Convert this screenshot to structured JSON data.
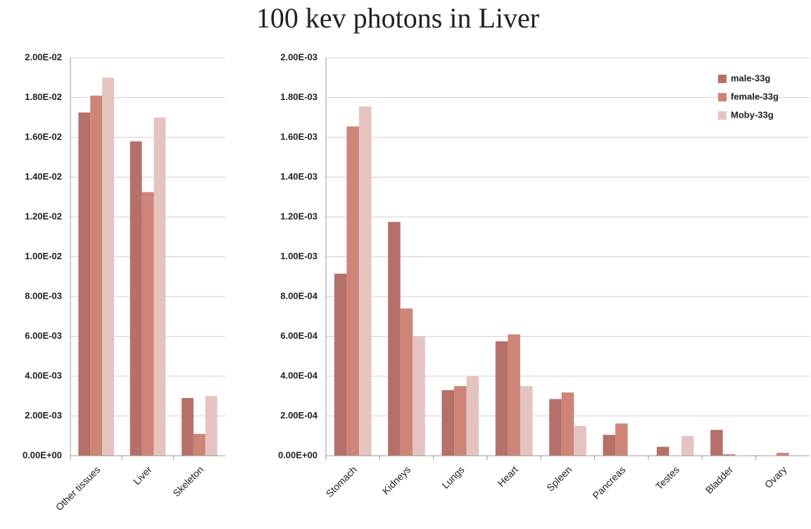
{
  "title": "100 kev photons in Liver",
  "chart_data": [
    {
      "type": "bar",
      "categories": [
        "Other tissues",
        "Liver",
        "Skeleton"
      ],
      "series": [
        {
          "color": "#b5706a",
          "values": [
            0.01725,
            0.0158,
            0.0029
          ]
        },
        {
          "color": "#cf8478",
          "values": [
            0.0181,
            0.01325,
            0.0011
          ]
        },
        {
          "color": "#e5c4c0",
          "values": [
            0.019,
            0.017,
            0.003
          ]
        }
      ],
      "ylim": [
        0,
        0.02
      ],
      "yticks": [
        {
          "value": 0,
          "label": "0.00E+00"
        },
        {
          "value": 0.002,
          "label": "2.00E-03"
        },
        {
          "value": 0.004,
          "label": "4.00E-03"
        },
        {
          "value": 0.006,
          "label": "6.00E-03"
        },
        {
          "value": 0.008,
          "label": "8.00E-03"
        },
        {
          "value": 0.01,
          "label": "1.00E-02"
        },
        {
          "value": 0.012,
          "label": "1.20E-02"
        },
        {
          "value": 0.014,
          "label": "1.40E-02"
        },
        {
          "value": 0.016,
          "label": "1.60E-02"
        },
        {
          "value": 0.018,
          "label": "1.80E-02"
        },
        {
          "value": 0.02,
          "label": "2.00E-02"
        }
      ],
      "grid": true
    },
    {
      "type": "bar",
      "categories": [
        "Stomach",
        "Kidneys",
        "Lungs",
        "Heart",
        "Spleen",
        "Pancreas",
        "Testes",
        "Bladder",
        "Ovary"
      ],
      "series": [
        {
          "name": "male-33g",
          "color": "#b5706a",
          "values": [
            0.000915,
            0.001175,
            0.00033,
            0.000575,
            0.000285,
            0.000105,
            4.5e-05,
            0.00013,
            0
          ]
        },
        {
          "name": "female-33g",
          "color": "#cf8478",
          "values": [
            0.001655,
            0.00074,
            0.00035,
            0.00061,
            0.000318,
            0.000162,
            0,
            8e-06,
            1.5e-05
          ]
        },
        {
          "name": "Moby-33g",
          "color": "#e5c4c0",
          "values": [
            0.001755,
            0.0006,
            0.0004,
            0.00035,
            0.00015,
            0,
            0.0001,
            0,
            0
          ]
        }
      ],
      "ylim": [
        0,
        0.002
      ],
      "yticks": [
        {
          "value": 0,
          "label": "0.00E+00"
        },
        {
          "value": 0.0002,
          "label": "2.00E-04"
        },
        {
          "value": 0.0004,
          "label": "4.00E-04"
        },
        {
          "value": 0.0006,
          "label": "6.00E-04"
        },
        {
          "value": 0.0008,
          "label": "8.00E-04"
        },
        {
          "value": 0.001,
          "label": "1.00E-03"
        },
        {
          "value": 0.0012,
          "label": "1.20E-03"
        },
        {
          "value": 0.0014,
          "label": "1.40E-03"
        },
        {
          "value": 0.0016,
          "label": "1.60E-03"
        },
        {
          "value": 0.0018,
          "label": "1.80E-03"
        },
        {
          "value": 0.002,
          "label": "2.00E-03"
        }
      ],
      "grid": true,
      "legend": "top-right"
    }
  ]
}
